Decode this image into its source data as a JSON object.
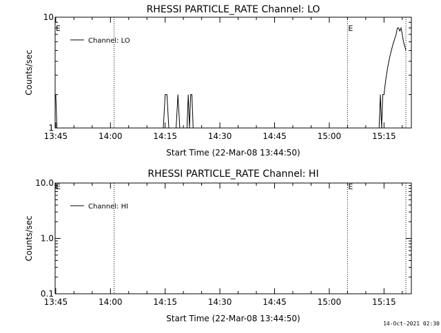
{
  "chart_data": [
    {
      "type": "line",
      "title": "RHESSI PARTICLE_RATE Channel: LO",
      "xlabel": "Start Time (22-Mar-08 13:44:50)",
      "ylabel": "Counts/sec",
      "yscale": "log",
      "ylim": [
        1,
        10
      ],
      "y_tick_labels": [
        "1",
        "10"
      ],
      "y_ticks": [
        1,
        10
      ],
      "xlim": [
        "13:44:50",
        "15:22:30"
      ],
      "x_tick_labels": [
        "13:45",
        "14:00",
        "14:15",
        "14:30",
        "14:45",
        "15:00",
        "15:15"
      ],
      "grid": false,
      "legend_position": "top-left",
      "series": [
        {
          "name": "Channel: LO",
          "x": [
            "13:45:00",
            "13:45:20",
            "13:45:40",
            "14:14:30",
            "14:15:00",
            "14:15:30",
            "14:16:00",
            "14:18:00",
            "14:18:30",
            "14:19:00",
            "14:21:00",
            "14:21:20",
            "14:21:40",
            "14:22:00",
            "14:22:20",
            "14:22:40",
            "15:13:40",
            "15:14:00",
            "15:14:20",
            "15:14:40",
            "15:15:00",
            "15:15:20",
            "15:15:40",
            "15:16:00",
            "15:16:20",
            "15:16:40",
            "15:17:00",
            "15:17:20",
            "15:17:40",
            "15:18:00",
            "15:18:20",
            "15:18:40",
            "15:19:00",
            "15:19:20",
            "15:19:40",
            "15:20:00",
            "15:20:20",
            "15:20:40",
            "15:21:00"
          ],
          "values": [
            2,
            1,
            1,
            1,
            2,
            2,
            1,
            1,
            2,
            1,
            1,
            2,
            1,
            2,
            2,
            1,
            1,
            2,
            1,
            2,
            2,
            2.5,
            3,
            3.5,
            4,
            4.5,
            5,
            5.5,
            6,
            6.5,
            7,
            8,
            8,
            7.5,
            8,
            7,
            6,
            5.5,
            5
          ]
        }
      ],
      "vlines_label": "E",
      "vlines": [
        "14:01:00",
        "15:05:00",
        "15:21:00"
      ]
    },
    {
      "type": "line",
      "title": "RHESSI PARTICLE_RATE Channel: HI",
      "xlabel": "Start Time (22-Mar-08 13:44:50)",
      "ylabel": "Counts/sec",
      "yscale": "log",
      "ylim": [
        0.1,
        10
      ],
      "y_tick_labels": [
        "0.1",
        "1.0",
        "10.0"
      ],
      "y_ticks": [
        0.1,
        1,
        10
      ],
      "xlim": [
        "13:44:50",
        "15:22:30"
      ],
      "x_tick_labels": [
        "13:45",
        "14:00",
        "14:15",
        "14:30",
        "14:45",
        "15:00",
        "15:15"
      ],
      "grid": false,
      "legend_position": "top-left",
      "series": [
        {
          "name": "Channel: HI",
          "x": [],
          "values": []
        }
      ],
      "vlines_label": "E",
      "vlines": [
        "14:01:00",
        "15:05:00",
        "15:21:00"
      ]
    }
  ],
  "footer": {
    "timestamp": "14-Oct-2021 02:30"
  }
}
